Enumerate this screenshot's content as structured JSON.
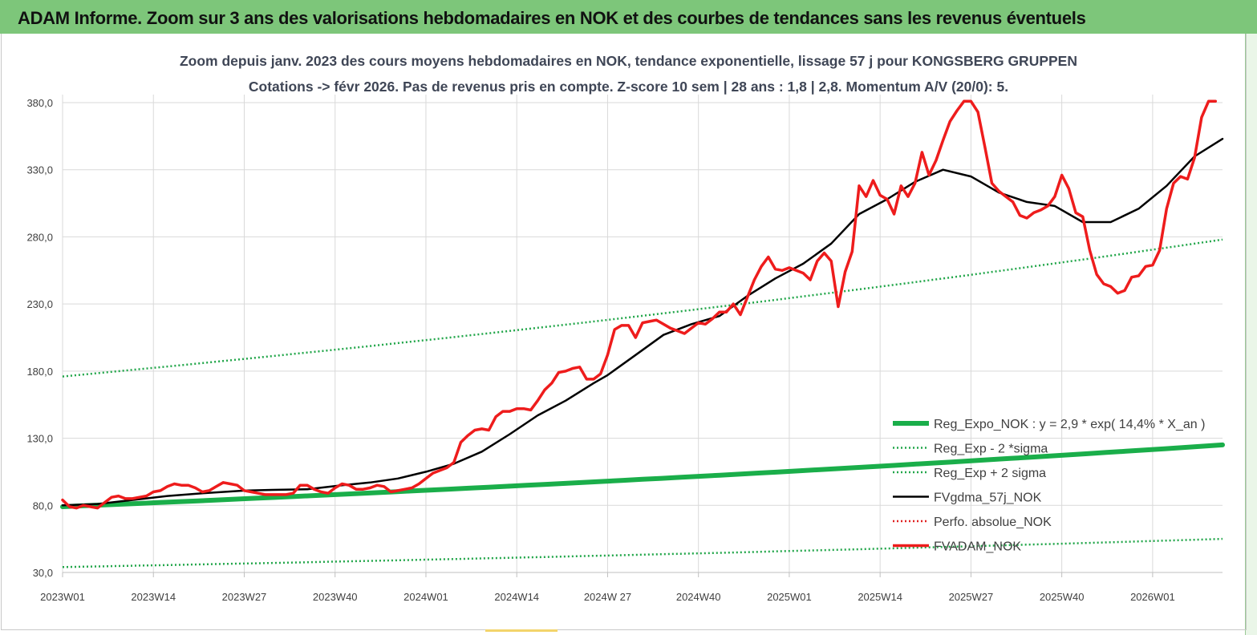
{
  "header": {
    "banner_title": "ADAM Informe. Zoom sur 3 ans des valorisations hebdomadaires en NOK et des courbes de tendances sans les revenus éventuels",
    "subtitle_line1": "Zoom depuis janv. 2023 des cours moyens hebdomadaires en NOK, tendance exponentielle, lissage 57 j pour KONGSBERG GRUPPEN",
    "subtitle_line2": "Cotations -> févr 2026. Pas de revenus pris en compte. Z-score 10 sem | 28 ans : 1,8 | 2,8. Momentum A/V (20/0): 5."
  },
  "colors": {
    "banner": "#7dc67a",
    "reg_expo": "#1aae4a",
    "sigma": "#22a64a",
    "fvgdma": "#000000",
    "perfo": "#e02020",
    "fvadam": "#ee1c1c",
    "grid": "#d9d9d9"
  },
  "chart_data": {
    "type": "line",
    "x_tick_labels": [
      "2023W01",
      "2023W14",
      "2023W27",
      "2023W40",
      "2024W01",
      "2024W14",
      "2024W 27",
      "2024W40",
      "2025W01",
      "2025W14",
      "2025W27",
      "2025W40",
      "2026W01"
    ],
    "y_tick_labels": [
      "30,0",
      "80,0",
      "130,0",
      "180,0",
      "230,0",
      "280,0",
      "330,0",
      "380,0"
    ],
    "ylim": [
      30,
      380
    ],
    "x_unit": "week index from 2023W01 (0 = 2023W01, 13 weeks per major tick)",
    "xlim": [
      0,
      166
    ],
    "grid": "vertical and horizontal",
    "legend_position": "right, inside plot",
    "legend": [
      {
        "label": "Reg_Expo_NOK : y = 2,9  * exp( 14,4% *  X_an )",
        "style": "thick-solid",
        "color_key": "reg_expo"
      },
      {
        "label": "Reg_Exp - 2 *sigma",
        "style": "dotted",
        "color_key": "sigma"
      },
      {
        "label": "Reg_Exp + 2 sigma",
        "style": "dotted",
        "color_key": "sigma"
      },
      {
        "label": "FVgdma_57j_NOK",
        "style": "solid",
        "color_key": "fvgdma"
      },
      {
        "label": "Perfo. absolue_NOK",
        "style": "dotted",
        "color_key": "perfo"
      },
      {
        "label": "FVADAM_NOK",
        "style": "solid",
        "color_key": "fvadam"
      }
    ],
    "series": [
      {
        "name": "Reg_Expo_NOK : y = 2,9  * exp( 14,4% *  X_an )",
        "color_key": "reg_expo",
        "width": 6,
        "dash": "",
        "x": [
          0,
          166
        ],
        "y": [
          79,
          125
        ],
        "interp": "exp"
      },
      {
        "name": "Reg_Exp - 2 *sigma",
        "color_key": "sigma",
        "width": 2.5,
        "dash": "2 3",
        "x": [
          0,
          166
        ],
        "y": [
          34,
          55
        ],
        "interp": "exp"
      },
      {
        "name": "Reg_Exp + 2 sigma",
        "color_key": "sigma",
        "width": 2.5,
        "dash": "2 3",
        "x": [
          0,
          166
        ],
        "y": [
          176,
          278
        ],
        "interp": "exp"
      },
      {
        "name": "FVgdma_57j_NOK",
        "color_key": "fvgdma",
        "width": 2.5,
        "dash": "",
        "x": [
          0,
          5,
          10,
          15,
          20,
          26,
          30,
          35,
          40,
          44,
          48,
          52,
          56,
          60,
          64,
          68,
          72,
          76,
          78,
          82,
          86,
          90,
          94,
          98,
          102,
          106,
          110,
          114,
          118,
          122,
          126,
          130,
          134,
          138,
          142,
          146,
          150,
          154,
          158,
          162,
          166
        ],
        "y": [
          80,
          81,
          84,
          87,
          89,
          91,
          91.5,
          92,
          95,
          97,
          100,
          105,
          111,
          120,
          133,
          147,
          158,
          171,
          177,
          192,
          207,
          215,
          221,
          236,
          249,
          260,
          275,
          297,
          308,
          321,
          330,
          325,
          313,
          306,
          303,
          291,
          291,
          301,
          318,
          340,
          353
        ]
      },
      {
        "name": "FVADAM_NOK",
        "color_key": "fvadam",
        "width": 3.5,
        "dash": "",
        "x": [
          0,
          1,
          2,
          3,
          4,
          5,
          6,
          7,
          8,
          9,
          10,
          11,
          12,
          13,
          14,
          15,
          16,
          17,
          18,
          19,
          20,
          21,
          22,
          23,
          24,
          25,
          26,
          27,
          28,
          29,
          30,
          31,
          32,
          33,
          34,
          35,
          36,
          37,
          38,
          39,
          40,
          41,
          42,
          43,
          44,
          45,
          46,
          47,
          48,
          49,
          50,
          51,
          52,
          53,
          54,
          55,
          56,
          57,
          58,
          59,
          60,
          61,
          62,
          63,
          64,
          65,
          66,
          67,
          68,
          69,
          70,
          71,
          72,
          73,
          74,
          75,
          76,
          77,
          78,
          79,
          80,
          81,
          82,
          83,
          84,
          85,
          86,
          87,
          88,
          89,
          90,
          91,
          92,
          93,
          94,
          95,
          96,
          97,
          98,
          99,
          100,
          101,
          102,
          103,
          104,
          105,
          106,
          107,
          108,
          109,
          110,
          111,
          112,
          113,
          114,
          115,
          116,
          117,
          118,
          119,
          120,
          121,
          122,
          123,
          124,
          125,
          126,
          127,
          128,
          129,
          130,
          131,
          132,
          133,
          134,
          135,
          136,
          137,
          138,
          139,
          140,
          141,
          142,
          143,
          144,
          145,
          146,
          147,
          148,
          149,
          150,
          151,
          152,
          153,
          154,
          155,
          156,
          157,
          158,
          159,
          160,
          161,
          162,
          163,
          164,
          165
        ],
        "y": [
          84,
          79,
          78,
          80,
          79,
          78,
          82,
          86,
          87,
          85,
          85,
          86,
          87,
          90,
          91,
          94,
          96,
          95,
          95,
          93,
          90,
          91,
          94,
          97,
          96,
          95,
          91,
          90,
          89,
          88,
          88,
          88,
          88,
          89,
          95,
          95,
          92,
          90,
          89,
          93,
          96,
          95,
          92,
          92,
          93,
          95,
          94,
          90,
          91,
          92,
          93,
          96,
          100,
          104,
          106,
          108,
          112,
          127,
          132,
          136,
          137,
          136,
          146,
          150,
          150,
          152,
          152,
          151,
          158,
          166,
          171,
          179,
          180,
          182,
          183,
          174,
          174,
          178,
          192,
          211,
          214,
          214,
          205,
          216,
          217,
          218,
          215,
          212,
          210,
          208,
          212,
          216,
          215,
          219,
          224,
          224,
          230,
          222,
          235,
          248,
          258,
          265,
          256,
          255,
          257,
          255,
          253,
          248,
          262,
          268,
          262,
          228,
          254,
          269,
          318,
          310,
          322,
          311,
          308,
          297,
          318,
          310,
          320,
          343,
          326,
          337,
          352,
          366,
          374,
          384,
          382,
          373,
          347,
          320,
          314,
          310,
          306,
          296,
          294,
          298,
          300,
          303,
          310,
          326,
          316,
          298,
          295,
          270,
          252,
          245,
          243,
          238,
          240,
          250,
          251,
          258,
          259,
          270,
          301,
          320,
          325,
          323,
          339,
          369,
          383,
          385
        ]
      }
    ]
  }
}
